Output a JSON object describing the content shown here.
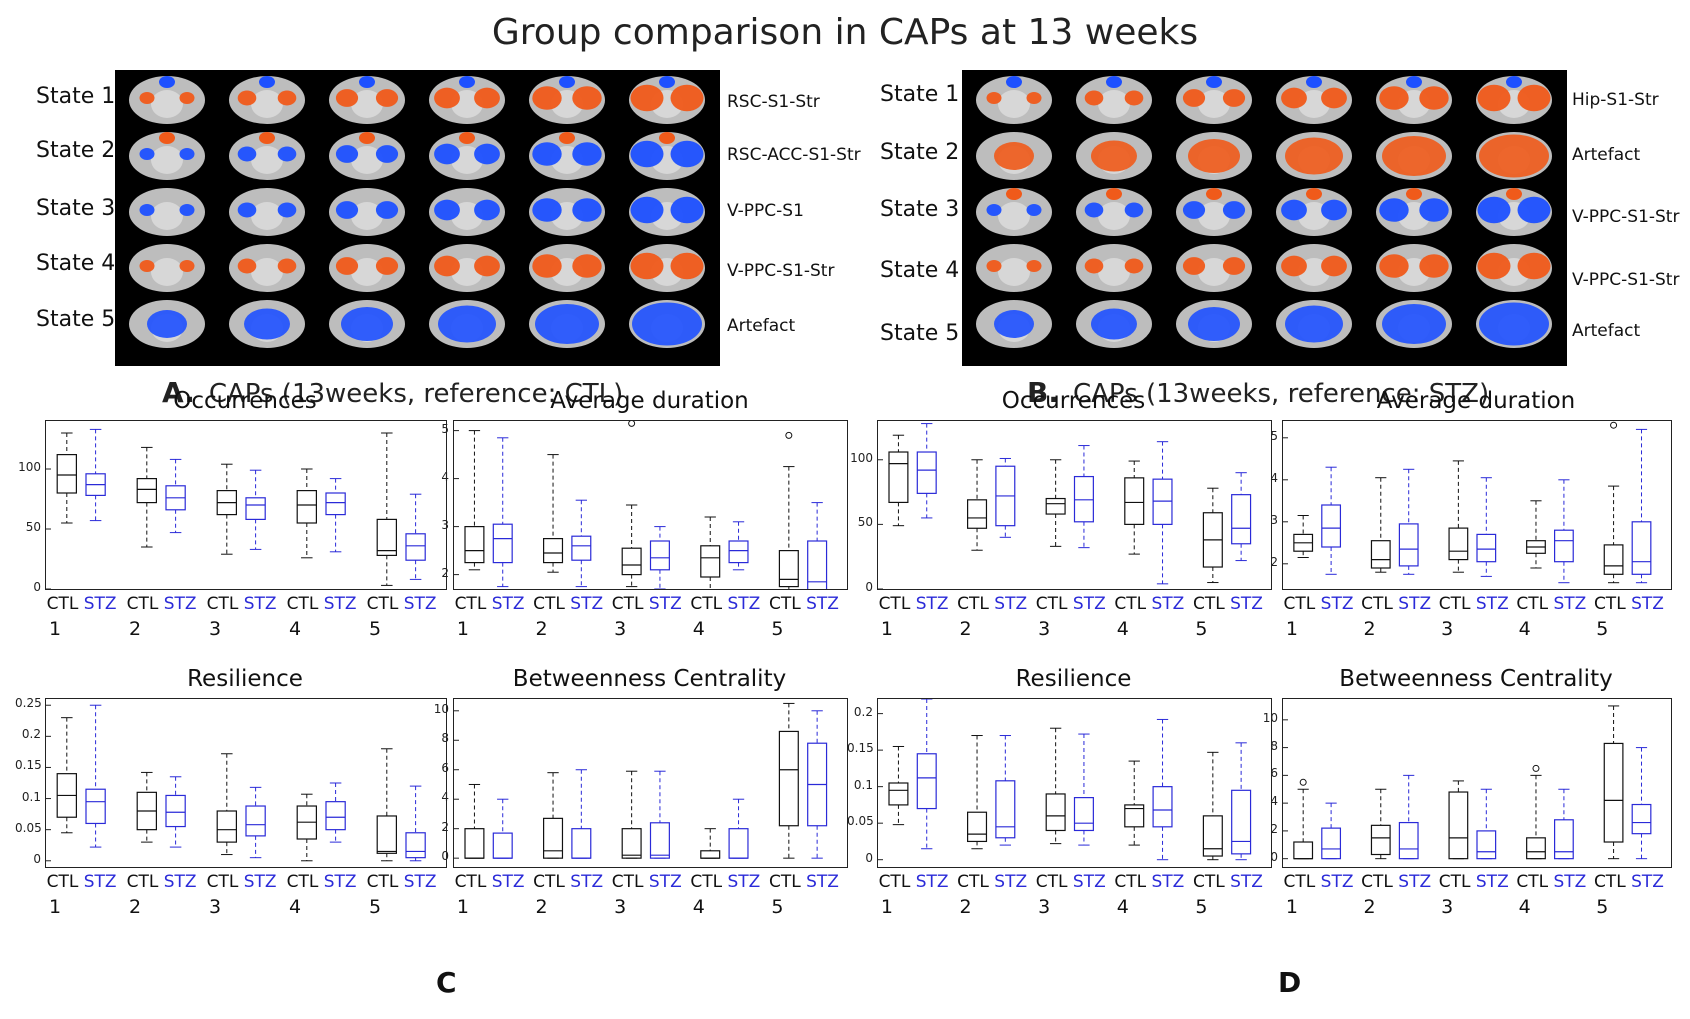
{
  "title": "Group comparison in CAPs at 13 weeks",
  "panelA": {
    "letter": "A.",
    "caption": "CAPs (13weeks, reference: CTL)",
    "states": [
      "State 1",
      "State 2",
      "State 3",
      "State 4",
      "State 5"
    ],
    "networks": [
      "RSC-S1-Str",
      "RSC-ACC-S1-Str",
      "V-PPC-S1",
      "V-PPC-S1-Str",
      "Artefact"
    ]
  },
  "panelB": {
    "letter": "B.",
    "caption": "CAPs (13weeks, reference: STZ)",
    "states": [
      "State 1",
      "State 2",
      "State 3",
      "State 4",
      "State 5"
    ],
    "networks": [
      "Hip-S1-Str",
      "Artefact",
      "V-PPC-S1-Str",
      "V-PPC-S1-Str",
      "Artefact"
    ]
  },
  "panelC_label": "C",
  "panelD_label": "D",
  "group_labels": {
    "ctl": "CTL",
    "stz": "STZ"
  },
  "state_numbers": [
    "1",
    "2",
    "3",
    "4",
    "5"
  ],
  "colors": {
    "ctl": "#111111",
    "stz": "#2a2ad8",
    "pos": "#f05a1a",
    "neg": "#1e50ff"
  },
  "chart_data": [
    {
      "id": "C-occ",
      "type": "box",
      "title": "Occurrences",
      "ylim": [
        0,
        140
      ],
      "yticks": [
        0,
        50,
        100
      ],
      "ctl": [
        [
          55,
          80,
          95,
          112,
          130
        ],
        [
          35,
          72,
          83,
          92,
          118
        ],
        [
          29,
          62,
          72,
          82,
          104
        ],
        [
          26,
          55,
          70,
          82,
          100
        ],
        [
          3,
          28,
          32,
          58,
          130
        ]
      ],
      "stz": [
        [
          57,
          78,
          87,
          96,
          133
        ],
        [
          47,
          66,
          76,
          86,
          108
        ],
        [
          33,
          58,
          70,
          76,
          99
        ],
        [
          31,
          62,
          72,
          80,
          92
        ],
        [
          8,
          24,
          36,
          46,
          79
        ]
      ],
      "outliers": []
    },
    {
      "id": "C-dur",
      "type": "box",
      "title": "Average duration",
      "ylim": [
        1.7,
        5.2
      ],
      "yticks": [
        2,
        3,
        4,
        5
      ],
      "ctl": [
        [
          2.1,
          2.25,
          2.5,
          3.0,
          5.0
        ],
        [
          2.05,
          2.25,
          2.45,
          2.75,
          4.5
        ],
        [
          1.75,
          2.0,
          2.2,
          2.55,
          3.45
        ],
        [
          1.65,
          1.95,
          2.35,
          2.6,
          3.2
        ],
        [
          1.6,
          1.75,
          1.9,
          2.5,
          4.25
        ]
      ],
      "stz": [
        [
          1.75,
          2.25,
          2.75,
          3.05,
          4.85
        ],
        [
          1.75,
          2.3,
          2.6,
          2.8,
          3.55
        ],
        [
          1.7,
          2.1,
          2.35,
          2.7,
          3.0
        ],
        [
          2.1,
          2.25,
          2.5,
          2.7,
          3.1
        ],
        [
          1.6,
          1.65,
          1.85,
          2.7,
          3.5
        ]
      ],
      "outliers": [
        {
          "g": "ctl",
          "s": 3,
          "v": 5.15
        },
        {
          "g": "ctl",
          "s": 5,
          "v": 4.9
        }
      ]
    },
    {
      "id": "C-res",
      "type": "box",
      "title": "Resilience",
      "ylim": [
        -0.01,
        0.26
      ],
      "yticks": [
        0,
        0.05,
        0.1,
        0.15,
        0.2,
        0.25
      ],
      "ctl": [
        [
          0.045,
          0.07,
          0.105,
          0.14,
          0.23
        ],
        [
          0.03,
          0.05,
          0.08,
          0.11,
          0.142
        ],
        [
          0.01,
          0.03,
          0.05,
          0.08,
          0.172
        ],
        [
          0.0,
          0.035,
          0.062,
          0.088,
          0.107
        ],
        [
          0.0,
          0.012,
          0.015,
          0.072,
          0.18
        ]
      ],
      "stz": [
        [
          0.022,
          0.06,
          0.095,
          0.115,
          0.25
        ],
        [
          0.022,
          0.055,
          0.078,
          0.105,
          0.135
        ],
        [
          0.005,
          0.04,
          0.058,
          0.088,
          0.118
        ],
        [
          0.03,
          0.05,
          0.07,
          0.095,
          0.125
        ],
        [
          0.0,
          0.005,
          0.015,
          0.045,
          0.12
        ]
      ],
      "outliers": []
    },
    {
      "id": "C-bc",
      "type": "box",
      "title": "Betweenness Centrality",
      "ylim": [
        -0.6,
        10.8
      ],
      "yticks": [
        0,
        2,
        4,
        6,
        8,
        10
      ],
      "ctl": [
        [
          0,
          0,
          0,
          2,
          5
        ],
        [
          0,
          0,
          0.5,
          2.7,
          5.8
        ],
        [
          0,
          0,
          0.2,
          2,
          5.9
        ],
        [
          0,
          0,
          0,
          0.5,
          2
        ],
        [
          0,
          2.2,
          6,
          8.6,
          10.5
        ]
      ],
      "stz": [
        [
          0,
          0,
          0,
          1.7,
          4
        ],
        [
          0,
          0,
          0,
          2,
          6
        ],
        [
          0,
          0,
          0.2,
          2.4,
          5.9
        ],
        [
          0,
          0,
          0,
          2,
          4
        ],
        [
          0,
          2.2,
          5,
          7.8,
          10
        ]
      ],
      "outliers": []
    },
    {
      "id": "D-occ",
      "type": "box",
      "title": "Occurrences",
      "ylim": [
        0,
        130
      ],
      "yticks": [
        0,
        50,
        100
      ],
      "ctl": [
        [
          49,
          67,
          97,
          106,
          119
        ],
        [
          30,
          47,
          55,
          69,
          100
        ],
        [
          33,
          58,
          66,
          70,
          100
        ],
        [
          27,
          50,
          67,
          86,
          99
        ],
        [
          5,
          17,
          38,
          59,
          78
        ]
      ],
      "stz": [
        [
          55,
          74,
          92,
          106,
          128
        ],
        [
          40,
          49,
          72,
          95,
          101
        ],
        [
          32,
          52,
          69,
          87,
          111
        ],
        [
          4,
          50,
          68,
          85,
          114
        ],
        [
          22,
          35,
          47,
          73,
          90
        ]
      ],
      "outliers": []
    },
    {
      "id": "D-dur",
      "type": "box",
      "title": "Average duration",
      "ylim": [
        1.4,
        5.4
      ],
      "yticks": [
        2,
        3,
        4,
        5
      ],
      "ctl": [
        [
          2.15,
          2.3,
          2.5,
          2.7,
          3.15
        ],
        [
          1.8,
          1.9,
          2.1,
          2.55,
          4.05
        ],
        [
          1.8,
          2.1,
          2.3,
          2.85,
          4.45
        ],
        [
          1.9,
          2.25,
          2.4,
          2.55,
          3.5
        ],
        [
          1.55,
          1.75,
          1.95,
          2.45,
          3.85
        ]
      ],
      "stz": [
        [
          1.75,
          2.4,
          2.85,
          3.4,
          4.3
        ],
        [
          1.75,
          1.95,
          2.35,
          2.95,
          4.25
        ],
        [
          1.7,
          2.05,
          2.35,
          2.7,
          4.05
        ],
        [
          1.55,
          2.05,
          2.55,
          2.8,
          4.0
        ],
        [
          1.55,
          1.75,
          2.05,
          3.0,
          5.2
        ]
      ],
      "outliers": [
        {
          "g": "ctl",
          "s": 5,
          "v": 5.3
        }
      ]
    },
    {
      "id": "D-res",
      "type": "box",
      "title": "Resilience",
      "ylim": [
        -0.01,
        0.22
      ],
      "yticks": [
        0,
        0.05,
        0.1,
        0.15,
        0.2
      ],
      "ctl": [
        [
          0.048,
          0.075,
          0.095,
          0.105,
          0.155
        ],
        [
          0.015,
          0.025,
          0.035,
          0.065,
          0.17
        ],
        [
          0.022,
          0.04,
          0.06,
          0.09,
          0.18
        ],
        [
          0.02,
          0.045,
          0.07,
          0.075,
          0.135
        ],
        [
          0.0,
          0.005,
          0.015,
          0.06,
          0.147
        ]
      ],
      "stz": [
        [
          0.015,
          0.07,
          0.112,
          0.145,
          0.22
        ],
        [
          0.02,
          0.03,
          0.045,
          0.108,
          0.17
        ],
        [
          0.02,
          0.04,
          0.05,
          0.085,
          0.172
        ],
        [
          0.0,
          0.045,
          0.068,
          0.1,
          0.192
        ],
        [
          0.0,
          0.008,
          0.025,
          0.095,
          0.16
        ]
      ],
      "outliers": []
    },
    {
      "id": "D-bc",
      "type": "box",
      "title": "Betweenness Centrality",
      "ylim": [
        -0.6,
        11.5
      ],
      "yticks": [
        0,
        2,
        4,
        6,
        8,
        10
      ],
      "ctl": [
        [
          0,
          0,
          0,
          1.2,
          5
        ],
        [
          0,
          0.3,
          1.5,
          2.4,
          5
        ],
        [
          0,
          0,
          1.5,
          4.8,
          5.6
        ],
        [
          0,
          0,
          0.5,
          1.5,
          6
        ],
        [
          0,
          1.2,
          4.2,
          8.3,
          11
        ]
      ],
      "stz": [
        [
          0,
          0,
          0.7,
          2.2,
          4
        ],
        [
          0,
          0,
          0.7,
          2.6,
          6
        ],
        [
          0,
          0,
          0.5,
          2,
          5
        ],
        [
          0,
          0,
          0.5,
          2.8,
          5
        ],
        [
          0,
          1.8,
          2.6,
          3.9,
          8
        ]
      ],
      "outliers": [
        {
          "g": "ctl",
          "s": 1,
          "v": 5.5
        },
        {
          "g": "ctl",
          "s": 4,
          "v": 6.5
        }
      ]
    }
  ]
}
